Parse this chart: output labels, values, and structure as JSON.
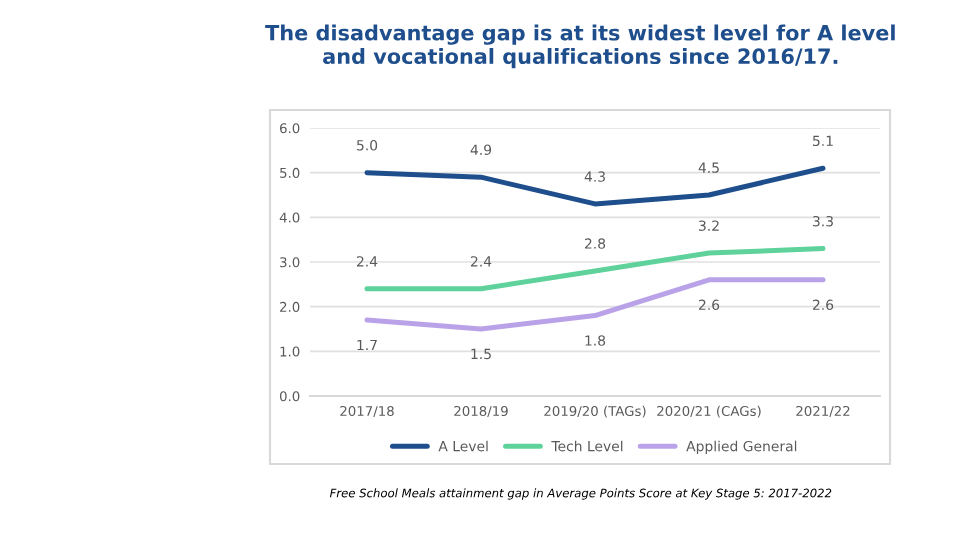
{
  "chart_data": {
    "type": "line",
    "title": "The disadvantage gap is at its widest level for A level\nand vocational qualifications since 2016/17.",
    "categories": [
      "2017/18",
      "2018/19",
      "2019/20 (TAGs)",
      "2020/21 (CAGs)",
      "2021/22"
    ],
    "series": [
      {
        "name": "A Level",
        "color": "#1f4e8c",
        "values": [
          5.0,
          4.9,
          4.3,
          4.5,
          5.1
        ],
        "value_labels": [
          "5.0",
          "4.9",
          "4.3",
          "4.5",
          "5.1"
        ]
      },
      {
        "name": "Tech Level",
        "color": "#5ed29a",
        "values": [
          2.4,
          2.4,
          2.8,
          3.2,
          3.3
        ],
        "value_labels": [
          "2.4",
          "2.4",
          "2.8",
          "3.2",
          "3.3"
        ]
      },
      {
        "name": "Applied General",
        "color": "#b9a2e8",
        "values": [
          1.7,
          1.5,
          1.8,
          2.6,
          2.6
        ],
        "value_labels": [
          "1.7",
          "1.5",
          "1.8",
          "2.6",
          "2.6"
        ]
      }
    ],
    "ylim": [
      0,
      6
    ],
    "yticks": [
      {
        "value": 0,
        "label": "0.0"
      },
      {
        "value": 1,
        "label": "1.0"
      },
      {
        "value": 2,
        "label": "2.0"
      },
      {
        "value": 3,
        "label": "3.0"
      },
      {
        "value": 4,
        "label": "4.0"
      },
      {
        "value": 5,
        "label": "5.0"
      },
      {
        "value": 6,
        "label": "6.0"
      }
    ],
    "grid": "y",
    "legend": "bottom",
    "marker": "none",
    "line_style": "solid",
    "annotations": [
      "Free School Meals attainment gap in Average Points Score at Key Stage 5: 2017-2022"
    ]
  }
}
